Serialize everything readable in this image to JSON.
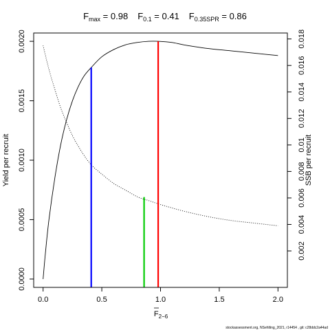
{
  "title": {
    "fmax_sym": "F",
    "fmax_sub": "max",
    "fmax_eq": " = 0.98",
    "f01_sym": "F",
    "f01_sub": "0.1",
    "f01_eq": " = 0.41",
    "f035_sym": "F",
    "f035_sub": "0.35SPR",
    "f035_eq": " = 0.86"
  },
  "xlabel": {
    "sym": "F",
    "sub": "2−6"
  },
  "footer": "stockassessment.org, NSehlting_2021, r14454 , git: c28ddc2a44ad",
  "chart_data": {
    "type": "line",
    "x_ticks": [
      0,
      0.5,
      1,
      1.5,
      2
    ],
    "x_tick_labels": [
      "0.0",
      "0.5",
      "1.0",
      "1.5",
      "2.0"
    ],
    "xlim": [
      -0.08,
      2.08
    ],
    "ylabel_left": "Yield per recruit",
    "ylim_left": [
      -7e-05,
      0.00207
    ],
    "y_ticks_left": [
      0,
      0.0005,
      0.001,
      0.0015,
      0.002
    ],
    "y_tick_labels_left": [
      "0.0000",
      "0.0005",
      "0.0010",
      "0.0015",
      "0.0020"
    ],
    "ylabel_right": "SSB per recruit",
    "ylim_right": [
      -0.00075,
      0.01845
    ],
    "y_ticks_right": [
      0.002,
      0.004,
      0.006,
      0.008,
      0.01,
      0.012,
      0.014,
      0.016,
      0.018
    ],
    "y_tick_labels_right": [
      "0.002",
      "0.004",
      "0.006",
      "0.008",
      "0.01",
      "0.012",
      "0.014",
      "0.016",
      "0.018"
    ],
    "series": [
      {
        "name": "Yield per recruit",
        "axis": "left",
        "style": "solid",
        "color": "#000000",
        "x": [
          0,
          0.02,
          0.05,
          0.1,
          0.15,
          0.2,
          0.25,
          0.3,
          0.35,
          0.41,
          0.5,
          0.6,
          0.7,
          0.8,
          0.9,
          0.98,
          1.1,
          1.2,
          1.4,
          1.6,
          1.8,
          2.0
        ],
        "y": [
          0,
          0.00022,
          0.0005,
          0.00085,
          0.00113,
          0.00134,
          0.0015,
          0.00162,
          0.00171,
          0.00178,
          0.00187,
          0.00193,
          0.00197,
          0.00199,
          0.002,
          0.002,
          0.00199,
          0.00197,
          0.00194,
          0.00192,
          0.0019,
          0.00188
        ]
      },
      {
        "name": "SSB per recruit",
        "axis": "right",
        "style": "dotted",
        "color": "#000000",
        "x": [
          0,
          0.05,
          0.1,
          0.15,
          0.2,
          0.25,
          0.3,
          0.35,
          0.41,
          0.5,
          0.6,
          0.7,
          0.8,
          0.86,
          0.9,
          1.0,
          1.2,
          1.4,
          1.6,
          1.8,
          2.0
        ],
        "y": [
          0.0175,
          0.0157,
          0.0142,
          0.0128,
          0.0117,
          0.0107,
          0.0099,
          0.0092,
          0.0085,
          0.0078,
          0.0071,
          0.0066,
          0.0061,
          0.0059,
          0.0058,
          0.0055,
          0.005,
          0.0046,
          0.0043,
          0.0041,
          0.0039
        ]
      }
    ],
    "reference_lines": [
      {
        "label": "F0.1",
        "x": 0.41,
        "y_top": 0.00178,
        "color": "#0000ff"
      },
      {
        "label": "F0.35SPR",
        "x": 0.86,
        "y_top": 0.00069,
        "color": "#00cc00"
      },
      {
        "label": "Fmax",
        "x": 0.98,
        "y_top": 0.002,
        "color": "#ff0000"
      }
    ],
    "grid": false
  }
}
